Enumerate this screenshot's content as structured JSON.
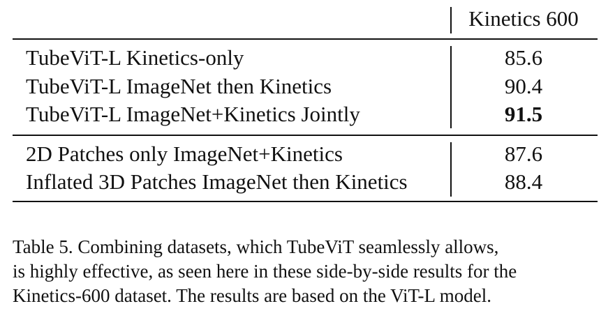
{
  "table": {
    "column_header": "Kinetics 600",
    "groups": [
      {
        "rows": [
          {
            "method": "TubeViT-L Kinetics-only",
            "score": "85.6"
          },
          {
            "method": "TubeViT-L ImageNet then Kinetics",
            "score": "90.4"
          },
          {
            "method": "TubeViT-L ImageNet+Kinetics Jointly",
            "score": "91.5",
            "best": true
          }
        ]
      },
      {
        "rows": [
          {
            "method": "2D Patches only ImageNet+Kinetics",
            "score": "87.6"
          },
          {
            "method": "Inflated 3D Patches ImageNet then Kinetics",
            "score": "88.4"
          }
        ]
      }
    ]
  },
  "caption": {
    "lines": [
      "Table 5. Combining datasets, which TubeViT seamlessly allows,",
      "is highly effective, as seen here in these side-by-side results for the",
      "Kinetics-600 dataset. The results are based on the ViT-L model."
    ]
  }
}
